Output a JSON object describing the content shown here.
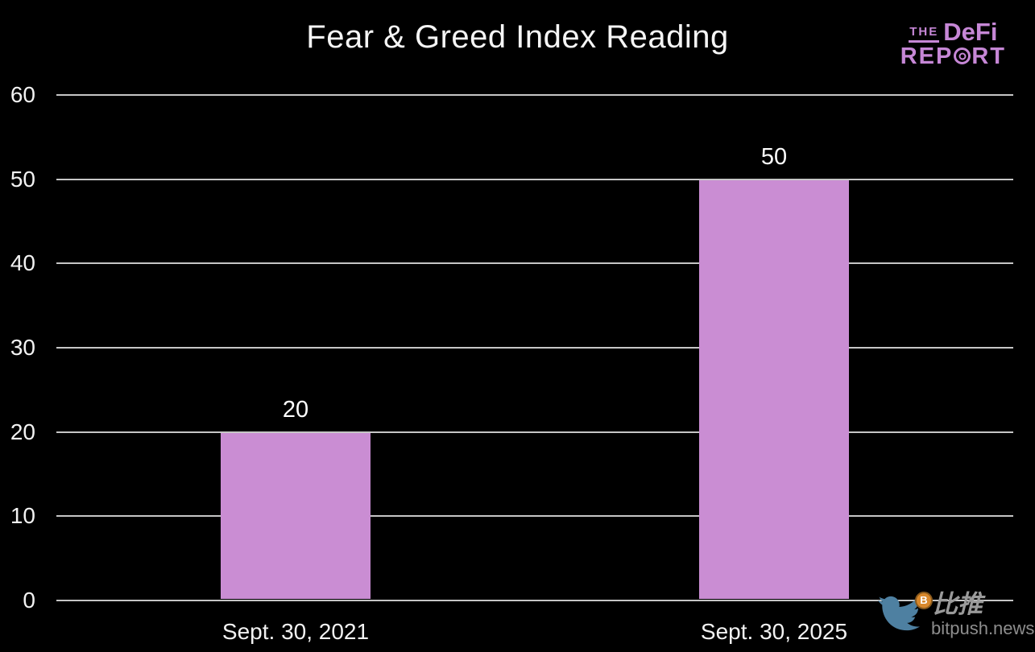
{
  "title": "Fear & Greed Index Reading",
  "logo": {
    "the": "THE",
    "defi": "DeFi",
    "report_pre": "REP",
    "report_post": "RT",
    "color": "#c687d6"
  },
  "chart_data": {
    "type": "bar",
    "title": "Fear & Greed Index Reading",
    "categories": [
      "Sept. 30, 2021",
      "Sept. 30, 2025"
    ],
    "values": [
      20,
      50
    ],
    "value_labels": [
      "20",
      "50"
    ],
    "yticks": [
      0,
      10,
      20,
      30,
      40,
      50,
      60
    ],
    "ylim": [
      0,
      60
    ],
    "xlabel": "",
    "ylabel": "",
    "grid": "horizontal",
    "legend": "none",
    "bar_color": "#ca8dd3",
    "gridline_color": "#c6c6c6",
    "background_color": "#000000",
    "text_color": "#f2f2f2"
  },
  "watermark": {
    "cn": "比推",
    "domain": "bitpush.news",
    "coin_symbol": "B",
    "bird_icon": "bitpush-bird-icon",
    "bird_color": "#4e80a1",
    "coin_color": "#d9882b",
    "text_color": "#9a9a9a"
  }
}
